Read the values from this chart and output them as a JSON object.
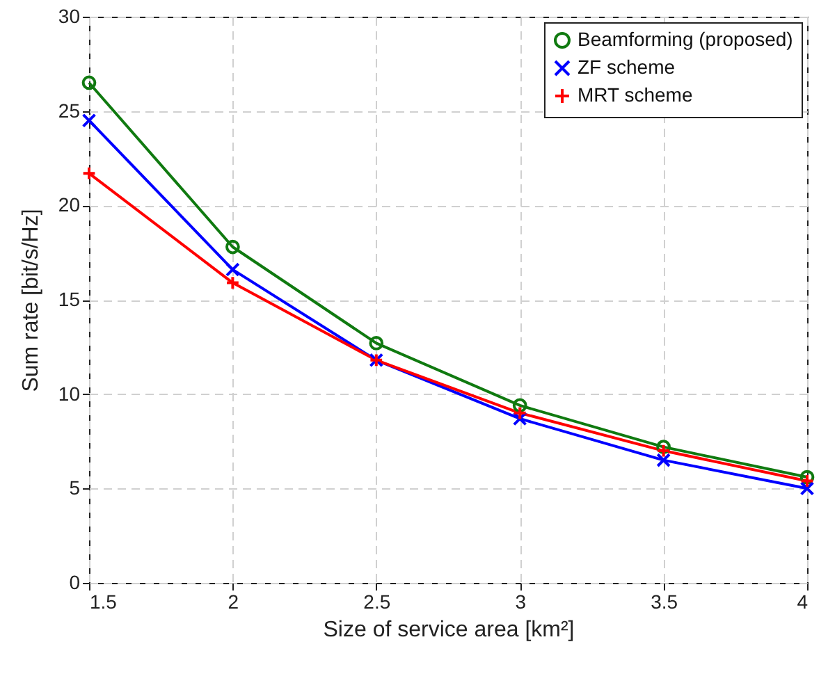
{
  "chart_data": {
    "type": "line",
    "xlabel": "Size of service area [km²]",
    "ylabel": "Sum rate [bit/s/Hz]",
    "x": [
      1.5,
      2,
      2.5,
      3,
      3.5,
      4
    ],
    "series": [
      {
        "name": "Beamforming (proposed)",
        "color": "#107a10",
        "marker": "circle",
        "values": [
          26.5,
          17.8,
          12.7,
          9.4,
          7.2,
          5.6
        ]
      },
      {
        "name": "ZF scheme",
        "color": "#0000ff",
        "marker": "x",
        "values": [
          24.5,
          16.6,
          11.8,
          8.7,
          6.5,
          5.0
        ]
      },
      {
        "name": "MRT scheme",
        "color": "#ff0000",
        "marker": "cross",
        "values": [
          21.7,
          15.9,
          11.8,
          9.0,
          7.0,
          5.4
        ]
      }
    ],
    "xlim": [
      1.5,
      4
    ],
    "xticks": [
      1.5,
      2,
      2.5,
      3,
      3.5,
      4
    ],
    "ylim": [
      0,
      30
    ],
    "yticks": [
      0,
      5,
      10,
      15,
      20,
      25,
      30
    ],
    "grid": true,
    "legend": "top right",
    "line_style": "solid"
  }
}
